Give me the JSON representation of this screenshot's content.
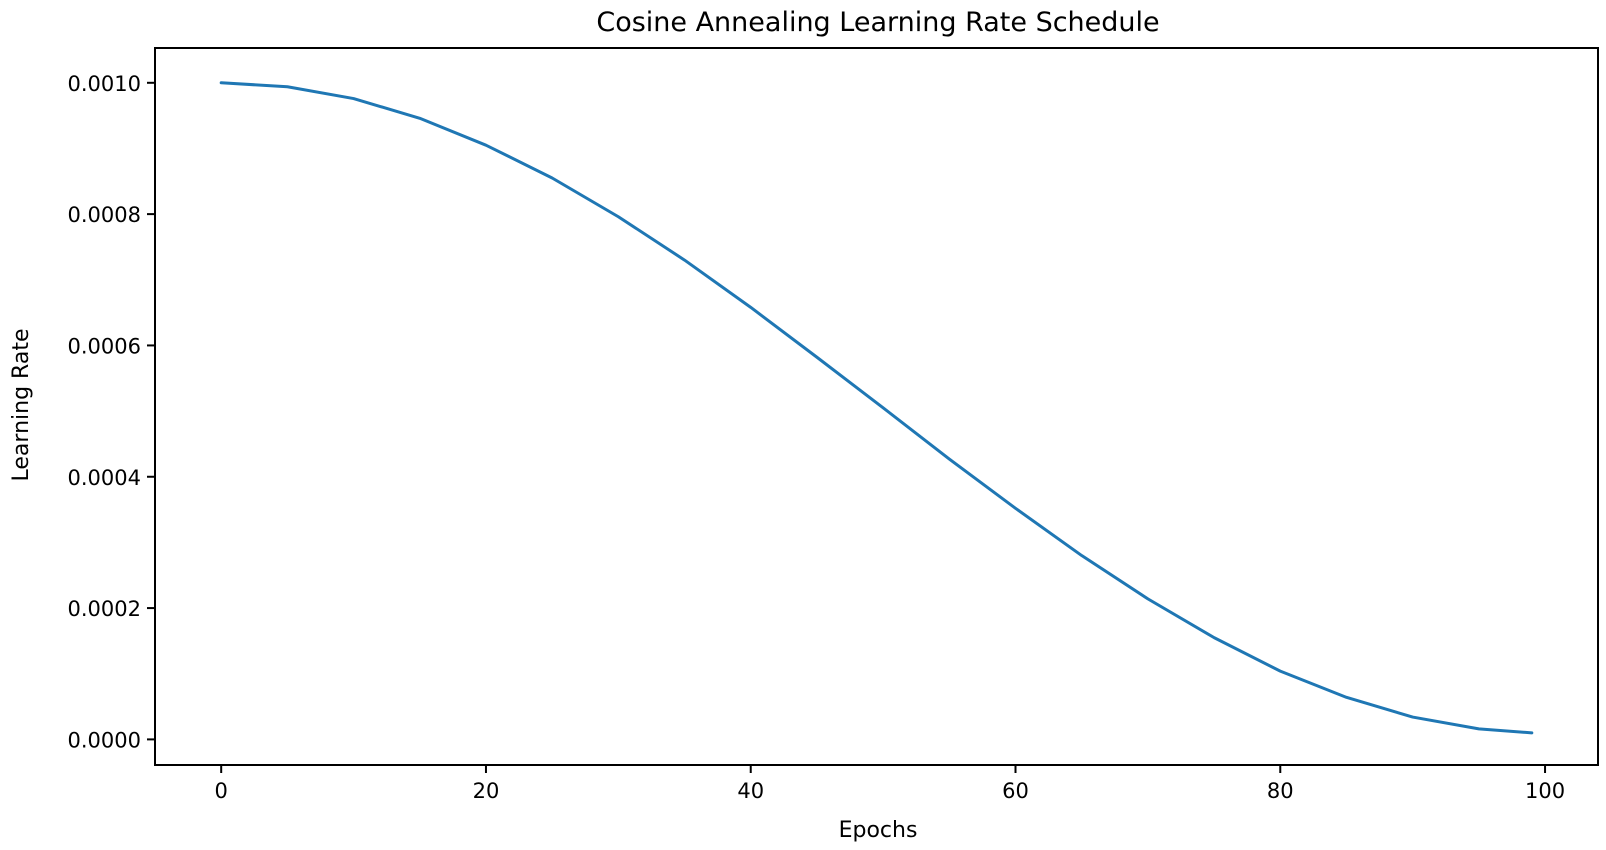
{
  "chart_data": {
    "type": "line",
    "title": "Cosine Annealing Learning Rate Schedule",
    "xlabel": "Epochs",
    "ylabel": "Learning Rate",
    "xlim": [
      -5,
      104
    ],
    "ylim": [
      -3.9e-05,
      0.001053
    ],
    "x_ticks": [
      0,
      20,
      40,
      60,
      80,
      100
    ],
    "x_tick_labels": [
      "0",
      "20",
      "40",
      "60",
      "80",
      "100"
    ],
    "y_ticks": [
      0.0,
      0.0002,
      0.0004,
      0.0006,
      0.0008,
      0.001
    ],
    "y_tick_labels": [
      "0.0000",
      "0.0002",
      "0.0004",
      "0.0006",
      "0.0008",
      "0.0010"
    ],
    "grid": false,
    "legend": "none",
    "series": [
      {
        "color": "#1f77b4",
        "x": [
          0,
          5,
          10,
          15,
          20,
          25,
          30,
          35,
          40,
          45,
          50,
          55,
          60,
          65,
          70,
          75,
          80,
          85,
          90,
          95,
          99
        ],
        "y": [
          0.001,
          0.000994,
          0.000976,
          0.000946,
          0.000905,
          0.000855,
          0.000796,
          0.00073,
          0.000658,
          0.000582,
          0.000505,
          0.000427,
          0.000352,
          0.00028,
          0.000214,
          0.000155,
          0.000104,
          6.4e-05,
          3.4e-05,
          1.6e-05,
          1e-05
        ]
      }
    ]
  }
}
